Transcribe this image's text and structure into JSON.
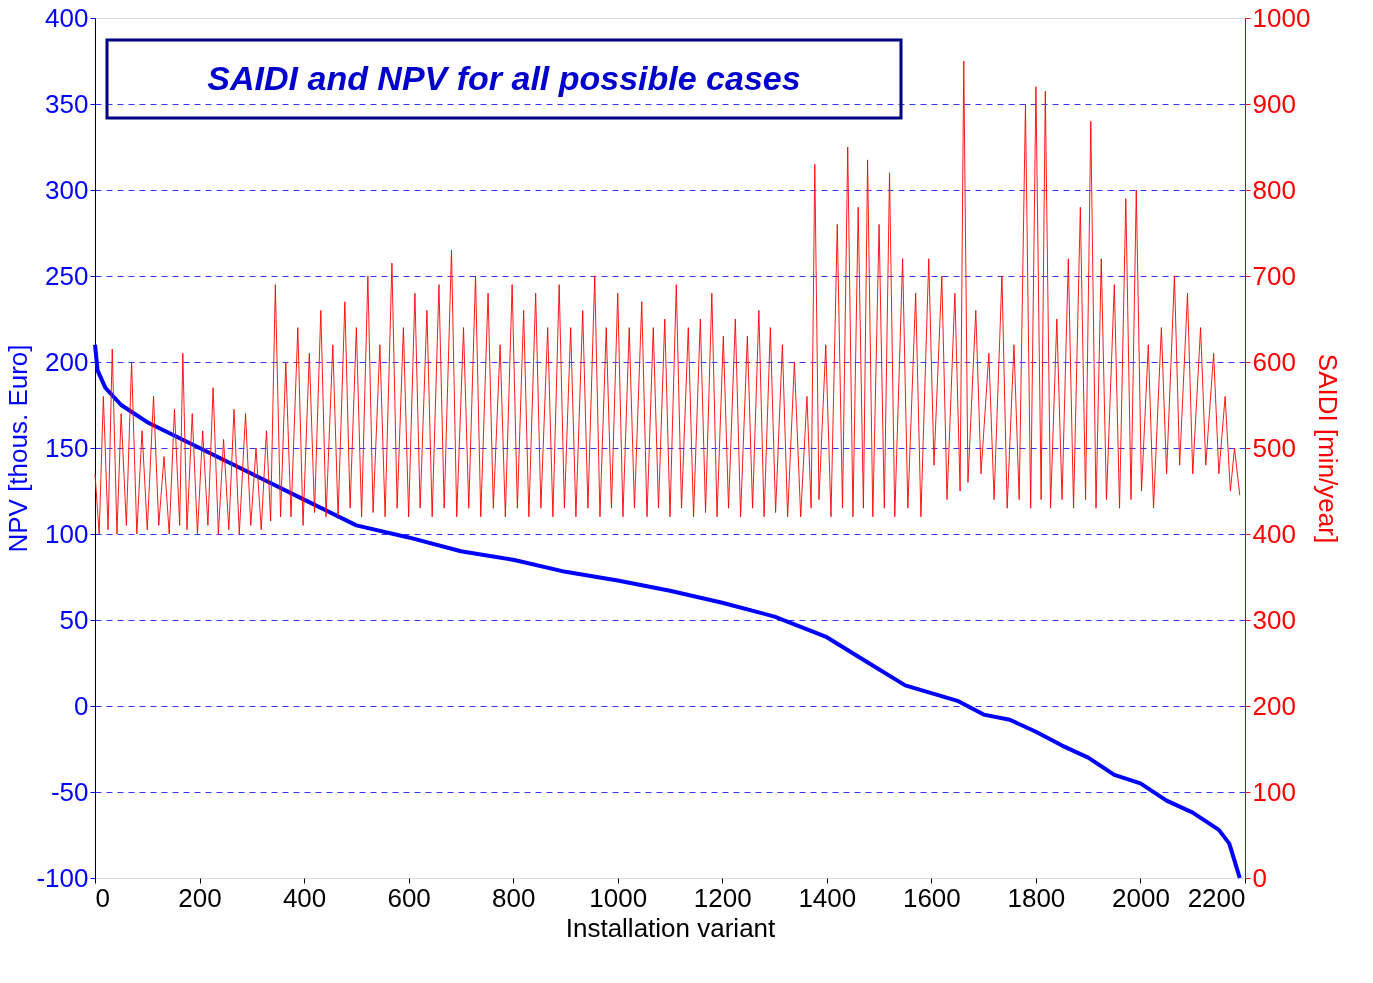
{
  "chart_data": {
    "type": "line",
    "title": "SAIDI and NPV for all possible cases",
    "xlabel": "Installation variant",
    "ylabel": "NPV [thous. Euro]",
    "y2label": "SAIDI [min/year]",
    "xlim": [
      0,
      2200
    ],
    "xticks": [
      0,
      200,
      400,
      600,
      800,
      {
        "value": 1000,
        "label": "1000"
      },
      {
        "value": 1200,
        "label": "1200"
      },
      {
        "value": 1400,
        "label": "1400"
      },
      {
        "value": 1600,
        "label": "1600"
      },
      {
        "value": 1800,
        "label": "1800"
      },
      {
        "value": 2000,
        "label": "2000"
      },
      {
        "value": 2200,
        "label": "2200"
      }
    ],
    "ylim": [
      -100,
      400
    ],
    "yticks": [
      -100,
      -50,
      0,
      50,
      100,
      150,
      200,
      250,
      300,
      350,
      400
    ],
    "y2lim": [
      0,
      1000
    ],
    "y2ticks": [
      0,
      100,
      200,
      300,
      400,
      500,
      600,
      700,
      800,
      900,
      {
        "value": 1000,
        "label": "1000"
      }
    ],
    "grid": "y",
    "series": [
      {
        "color": "#ff0000",
        "axis": "y2",
        "x": [
          0,
          8,
          16,
          25,
          33,
          42,
          50,
          60,
          70,
          80,
          90,
          100,
          112,
          122,
          132,
          142,
          152,
          162,
          168,
          176,
          186,
          196,
          206,
          216,
          226,
          236,
          246,
          256,
          266,
          276,
          288,
          298,
          308,
          318,
          328,
          336,
          345,
          355,
          365,
          375,
          388,
          398,
          410,
          420,
          432,
          442,
          455,
          465,
          478,
          488,
          500,
          510,
          522,
          532,
          545,
          555,
          568,
          578,
          590,
          600,
          612,
          622,
          635,
          645,
          658,
          668,
          682,
          692,
          705,
          715,
          728,
          738,
          752,
          762,
          775,
          785,
          798,
          808,
          820,
          830,
          843,
          853,
          866,
          876,
          888,
          898,
          910,
          920,
          933,
          943,
          956,
          966,
          978,
          988,
          1000,
          1010,
          1022,
          1032,
          1046,
          1056,
          1068,
          1078,
          1090,
          1100,
          1112,
          1122,
          1135,
          1145,
          1158,
          1168,
          1180,
          1190,
          1202,
          1212,
          1225,
          1235,
          1248,
          1258,
          1270,
          1280,
          1292,
          1302,
          1315,
          1325,
          1338,
          1350,
          1362,
          1370,
          1377,
          1385,
          1398,
          1408,
          1420,
          1430,
          1440,
          1450,
          1460,
          1470,
          1478,
          1488,
          1500,
          1510,
          1520,
          1530,
          1545,
          1555,
          1570,
          1580,
          1595,
          1605,
          1620,
          1630,
          1645,
          1655,
          1662,
          1670,
          1685,
          1695,
          1710,
          1720,
          1735,
          1745,
          1758,
          1768,
          1780,
          1790,
          1800,
          1810,
          1818,
          1828,
          1840,
          1850,
          1862,
          1872,
          1885,
          1895,
          1905,
          1915,
          1925,
          1935,
          1950,
          1960,
          1972,
          1982,
          1992,
          2002,
          2015,
          2025,
          2040,
          2050,
          2065,
          2075,
          2090,
          2100,
          2115,
          2125,
          2140,
          2150,
          2162,
          2172,
          2180,
          2190
        ],
        "values": [
          470,
          400,
          560,
          405,
          615,
          400,
          540,
          410,
          600,
          400,
          520,
          405,
          560,
          410,
          490,
          400,
          545,
          410,
          610,
          405,
          540,
          400,
          520,
          410,
          570,
          400,
          510,
          405,
          545,
          400,
          540,
          410,
          500,
          405,
          520,
          415,
          690,
          420,
          600,
          420,
          640,
          410,
          610,
          425,
          660,
          420,
          620,
          420,
          670,
          430,
          640,
          420,
          700,
          425,
          620,
          420,
          715,
          430,
          640,
          420,
          680,
          430,
          660,
          420,
          690,
          430,
          730,
          420,
          640,
          430,
          700,
          420,
          680,
          430,
          620,
          420,
          690,
          430,
          660,
          420,
          680,
          430,
          640,
          420,
          690,
          430,
          640,
          420,
          660,
          430,
          700,
          420,
          640,
          430,
          680,
          420,
          640,
          430,
          670,
          420,
          640,
          430,
          650,
          420,
          690,
          430,
          640,
          420,
          650,
          425,
          680,
          420,
          630,
          430,
          650,
          420,
          630,
          430,
          660,
          420,
          640,
          425,
          620,
          420,
          600,
          420,
          560,
          430,
          830,
          440,
          620,
          420,
          760,
          430,
          850,
          420,
          780,
          430,
          835,
          420,
          760,
          430,
          820,
          420,
          720,
          430,
          680,
          420,
          720,
          480,
          700,
          440,
          680,
          450,
          950,
          460,
          660,
          470,
          610,
          440,
          700,
          430,
          620,
          440,
          900,
          430,
          920,
          440,
          915,
          430,
          650,
          440,
          720,
          430,
          780,
          440,
          880,
          430,
          720,
          440,
          690,
          430,
          790,
          440,
          800,
          450,
          620,
          430,
          640,
          470,
          700,
          480,
          680,
          470,
          640,
          480,
          610,
          470,
          560,
          450,
          500,
          445
        ]
      },
      {
        "color": "#0000ff",
        "axis": "y",
        "x": [
          0,
          5,
          20,
          50,
          100,
          200,
          300,
          400,
          500,
          600,
          700,
          800,
          900,
          1000,
          1100,
          1200,
          1300,
          1400,
          1480,
          1550,
          1650,
          1700,
          1750,
          1800,
          1850,
          1900,
          1950,
          2000,
          2050,
          2100,
          2150,
          2170,
          2185,
          2190
        ],
        "values": [
          210,
          195,
          185,
          175,
          165,
          150,
          135,
          120,
          105,
          98,
          90,
          85,
          78,
          73,
          67,
          60,
          52,
          40,
          25,
          12,
          3,
          -5,
          -8,
          -15,
          -23,
          -30,
          -40,
          -45,
          -55,
          -62,
          -72,
          -80,
          -95,
          -100
        ]
      }
    ]
  }
}
